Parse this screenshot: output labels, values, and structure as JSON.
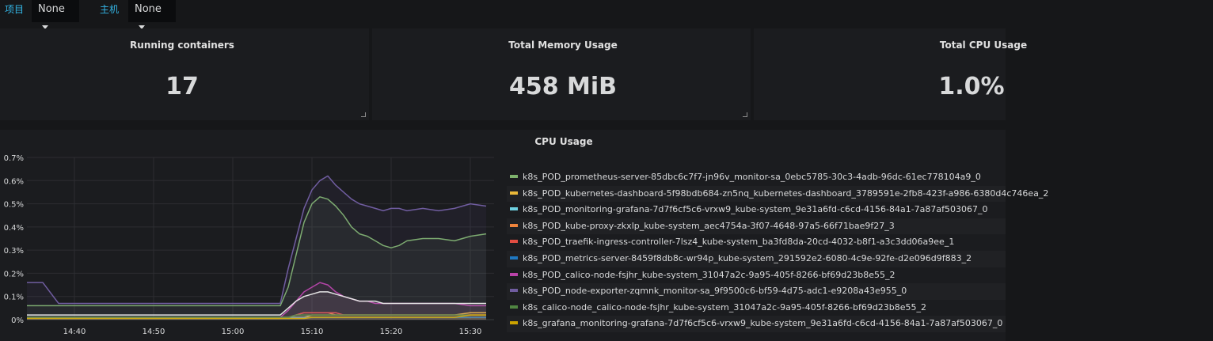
{
  "variables": [
    {
      "label": "项目",
      "value": "None"
    },
    {
      "label": "主机",
      "value": "None"
    }
  ],
  "stats": [
    {
      "title": "Running containers",
      "value": "17"
    },
    {
      "title": "Total Memory Usage",
      "value": "458 MiB"
    },
    {
      "title": "Total CPU Usage",
      "value": "1.0%"
    }
  ],
  "cpu_panel": {
    "title": "CPU Usage"
  },
  "chart_data": {
    "type": "line",
    "title": "CPU Usage",
    "x": [
      "14:34",
      "14:36",
      "14:38",
      "14:40",
      "14:42",
      "14:44",
      "14:46",
      "14:48",
      "14:50",
      "14:52",
      "14:54",
      "14:56",
      "14:58",
      "15:00",
      "15:02",
      "15:04",
      "15:06",
      "15:07",
      "15:08",
      "15:09",
      "15:10",
      "15:11",
      "15:12",
      "15:13",
      "15:14",
      "15:15",
      "15:16",
      "15:17",
      "15:18",
      "15:19",
      "15:20",
      "15:21",
      "15:22",
      "15:24",
      "15:26",
      "15:28",
      "15:30",
      "15:32"
    ],
    "x_ticks": [
      "14:40",
      "14:50",
      "15:00",
      "15:10",
      "15:20",
      "15:30"
    ],
    "y_ticks": [
      "0%",
      "0.1%",
      "0.2%",
      "0.3%",
      "0.4%",
      "0.5%",
      "0.6%",
      "0.7%"
    ],
    "ylim": [
      0,
      0.7
    ],
    "y_unit": "%",
    "grid": true,
    "legend_position": "right",
    "series": [
      {
        "name": "k8s_POD_prometheus-server-85dbc6c7f7-jn96v_monitor-sa_0ebc5785-30c3-4adb-96dc-61ec778104a9_0",
        "color": "#7eb26d",
        "values": [
          0.06,
          0.06,
          0.06,
          0.06,
          0.06,
          0.06,
          0.06,
          0.06,
          0.06,
          0.06,
          0.06,
          0.06,
          0.06,
          0.06,
          0.06,
          0.06,
          0.06,
          0.14,
          0.28,
          0.42,
          0.5,
          0.53,
          0.52,
          0.49,
          0.45,
          0.4,
          0.37,
          0.36,
          0.34,
          0.32,
          0.31,
          0.32,
          0.34,
          0.35,
          0.35,
          0.34,
          0.36,
          0.37
        ]
      },
      {
        "name": "k8s_POD_kubernetes-dashboard-5f98bdb684-zn5nq_kubernetes-dashboard_3789591e-2fb8-423f-a986-6380d4c746ea_2",
        "color": "#eab839",
        "values": [
          0.01,
          0.01,
          0.01,
          0.01,
          0.01,
          0.01,
          0.01,
          0.01,
          0.01,
          0.01,
          0.01,
          0.01,
          0.01,
          0.01,
          0.01,
          0.01,
          0.01,
          0.01,
          0.01,
          0.01,
          0.02,
          0.02,
          0.02,
          0.02,
          0.02,
          0.02,
          0.02,
          0.02,
          0.02,
          0.02,
          0.02,
          0.02,
          0.02,
          0.02,
          0.02,
          0.02,
          0.03,
          0.03
        ]
      },
      {
        "name": "k8s_POD_monitoring-grafana-7d7f6cf5c6-vrxw9_kube-system_9e31a6fd-c6cd-4156-84a1-7a87af503067_0",
        "color": "#6ed0e0",
        "values": [
          0.01,
          0.01,
          0.01,
          0.01,
          0.01,
          0.01,
          0.01,
          0.01,
          0.01,
          0.01,
          0.01,
          0.01,
          0.01,
          0.01,
          0.01,
          0.01,
          0.01,
          0.01,
          0.01,
          0.01,
          0.01,
          0.01,
          0.01,
          0.01,
          0.01,
          0.01,
          0.01,
          0.01,
          0.01,
          0.01,
          0.01,
          0.01,
          0.01,
          0.01,
          0.01,
          0.01,
          0.01,
          0.01
        ]
      },
      {
        "name": "k8s_POD_kube-proxy-zkxlp_kube-system_aec4754a-3f07-4648-97a5-66f71bae9f27_3",
        "color": "#ef843c",
        "values": [
          0.005,
          0.005,
          0.005,
          0.005,
          0.005,
          0.005,
          0.005,
          0.005,
          0.005,
          0.005,
          0.005,
          0.005,
          0.005,
          0.005,
          0.005,
          0.005,
          0.005,
          0.01,
          0.02,
          0.03,
          0.03,
          0.03,
          0.03,
          0.02,
          0.02,
          0.02,
          0.02,
          0.02,
          0.02,
          0.02,
          0.02,
          0.02,
          0.02,
          0.02,
          0.02,
          0.02,
          0.02,
          0.02
        ]
      },
      {
        "name": "k8s_POD_traefik-ingress-controller-7lsz4_kube-system_ba3fd8da-20cd-4032-b8f1-a3c3dd06a9ee_1",
        "color": "#e24d42",
        "values": [
          0.005,
          0.005,
          0.005,
          0.005,
          0.005,
          0.005,
          0.005,
          0.005,
          0.005,
          0.005,
          0.005,
          0.005,
          0.005,
          0.005,
          0.005,
          0.005,
          0.005,
          0.01,
          0.02,
          0.03,
          0.03,
          0.03,
          0.03,
          0.03,
          0.02,
          0.02,
          0.02,
          0.02,
          0.02,
          0.02,
          0.02,
          0.02,
          0.02,
          0.02,
          0.02,
          0.02,
          0.02,
          0.02
        ]
      },
      {
        "name": "k8s_POD_metrics-server-8459f8db8c-wr94p_kube-system_291592e2-6080-4c9e-92fe-d2e096d9f883_2",
        "color": "#1f78c1",
        "values": [
          0.005,
          0.005,
          0.005,
          0.005,
          0.005,
          0.005,
          0.005,
          0.005,
          0.005,
          0.005,
          0.005,
          0.005,
          0.005,
          0.005,
          0.005,
          0.005,
          0.005,
          0.005,
          0.005,
          0.005,
          0.01,
          0.01,
          0.01,
          0.01,
          0.01,
          0.01,
          0.01,
          0.01,
          0.01,
          0.01,
          0.01,
          0.01,
          0.01,
          0.01,
          0.01,
          0.01,
          0.01,
          0.01
        ]
      },
      {
        "name": "k8s_POD_calico-node-fsjhr_kube-system_31047a2c-9a95-405f-8266-bf69d23b8e55_2",
        "color": "#ba43a9",
        "values": [
          0.01,
          0.01,
          0.01,
          0.01,
          0.01,
          0.01,
          0.01,
          0.01,
          0.01,
          0.01,
          0.01,
          0.01,
          0.01,
          0.01,
          0.01,
          0.01,
          0.01,
          0.04,
          0.08,
          0.12,
          0.14,
          0.16,
          0.15,
          0.12,
          0.1,
          0.09,
          0.08,
          0.08,
          0.07,
          0.07,
          0.07,
          0.07,
          0.07,
          0.07,
          0.07,
          0.07,
          0.06,
          0.06
        ]
      },
      {
        "name": "k8s_POD_node-exporter-zqmnk_monitor-sa_9f9500c6-bf59-4d75-adc1-e9208a43e955_0",
        "color": "#705da0",
        "values": [
          0.16,
          0.16,
          0.07,
          0.07,
          0.07,
          0.07,
          0.07,
          0.07,
          0.07,
          0.07,
          0.07,
          0.07,
          0.07,
          0.07,
          0.07,
          0.07,
          0.07,
          0.22,
          0.35,
          0.48,
          0.56,
          0.6,
          0.62,
          0.58,
          0.55,
          0.52,
          0.5,
          0.49,
          0.48,
          0.47,
          0.48,
          0.48,
          0.47,
          0.48,
          0.47,
          0.48,
          0.5,
          0.49
        ]
      },
      {
        "name": "k8s_calico-node_calico-node-fsjhr_kube-system_31047a2c-9a95-405f-8266-bf69d23b8e55_2",
        "color": "#508642",
        "values": [
          0.01,
          0.01,
          0.01,
          0.01,
          0.01,
          0.01,
          0.01,
          0.01,
          0.01,
          0.01,
          0.01,
          0.01,
          0.01,
          0.01,
          0.01,
          0.01,
          0.01,
          0.01,
          0.02,
          0.02,
          0.02,
          0.02,
          0.02,
          0.02,
          0.02,
          0.02,
          0.02,
          0.02,
          0.02,
          0.02,
          0.02,
          0.02,
          0.02,
          0.02,
          0.02,
          0.02,
          0.02,
          0.02
        ]
      },
      {
        "name": "k8s_grafana_monitoring-grafana-7d7f6cf5c6-vrxw9_kube-system_9e31a6fd-c6cd-4156-84a1-7a87af503067_0",
        "color": "#cca300",
        "values": [
          0.005,
          0.005,
          0.005,
          0.005,
          0.005,
          0.005,
          0.005,
          0.005,
          0.005,
          0.005,
          0.005,
          0.005,
          0.005,
          0.005,
          0.005,
          0.005,
          0.005,
          0.005,
          0.005,
          0.005,
          0.01,
          0.01,
          0.01,
          0.01,
          0.01,
          0.01,
          0.01,
          0.01,
          0.01,
          0.01,
          0.01,
          0.01,
          0.01,
          0.01,
          0.01,
          0.01,
          0.02,
          0.02
        ]
      },
      {
        "name": "",
        "color": "#e5e5e5",
        "values": [
          0.02,
          0.02,
          0.02,
          0.02,
          0.02,
          0.02,
          0.02,
          0.02,
          0.02,
          0.02,
          0.02,
          0.02,
          0.02,
          0.02,
          0.02,
          0.02,
          0.02,
          0.05,
          0.08,
          0.1,
          0.11,
          0.12,
          0.12,
          0.11,
          0.1,
          0.09,
          0.08,
          0.08,
          0.08,
          0.07,
          0.07,
          0.07,
          0.07,
          0.07,
          0.07,
          0.07,
          0.07,
          0.07
        ]
      }
    ]
  }
}
